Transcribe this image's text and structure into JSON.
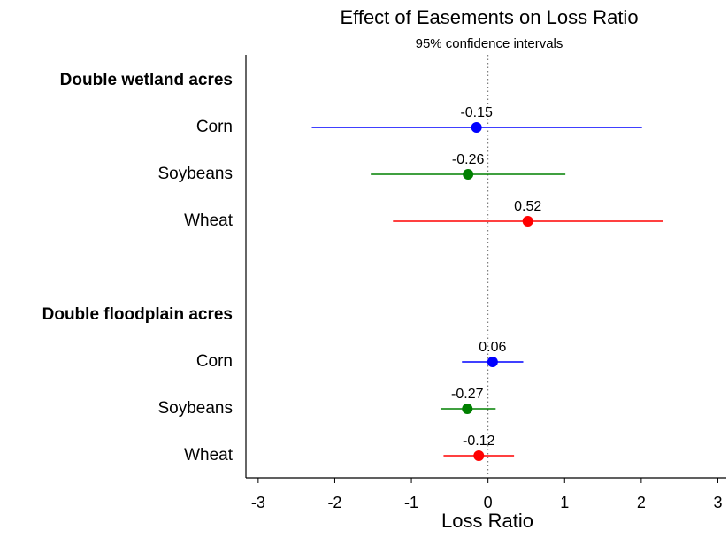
{
  "chart_data": {
    "type": "forest",
    "title": "Effect of Easements on Loss Ratio",
    "subtitle": "95% confidence intervals",
    "xlabel": "Loss Ratio",
    "xlim": [
      -3.16,
      3.11
    ],
    "xticks": [
      -3,
      -2,
      -1,
      0,
      1,
      2,
      3
    ],
    "reference_line": 0,
    "groups": [
      {
        "name": "Double wetland acres",
        "rows": [
          {
            "label": "Corn",
            "color": "#0000ff",
            "value": -0.15,
            "low": -2.3,
            "high": 2.01
          },
          {
            "label": "Soybeans",
            "color": "#008000",
            "value": -0.26,
            "low": -1.53,
            "high": 1.01
          },
          {
            "label": "Wheat",
            "color": "#ff0000",
            "value": 0.52,
            "low": -1.24,
            "high": 2.29
          }
        ]
      },
      {
        "name": "Double floodplain acres",
        "rows": [
          {
            "label": "Corn",
            "color": "#0000ff",
            "value": 0.06,
            "low": -0.34,
            "high": 0.46
          },
          {
            "label": "Soybeans",
            "color": "#008000",
            "value": -0.27,
            "low": -0.62,
            "high": 0.1
          },
          {
            "label": "Wheat",
            "color": "#ff0000",
            "value": -0.12,
            "low": -0.58,
            "high": 0.34
          }
        ]
      }
    ]
  }
}
